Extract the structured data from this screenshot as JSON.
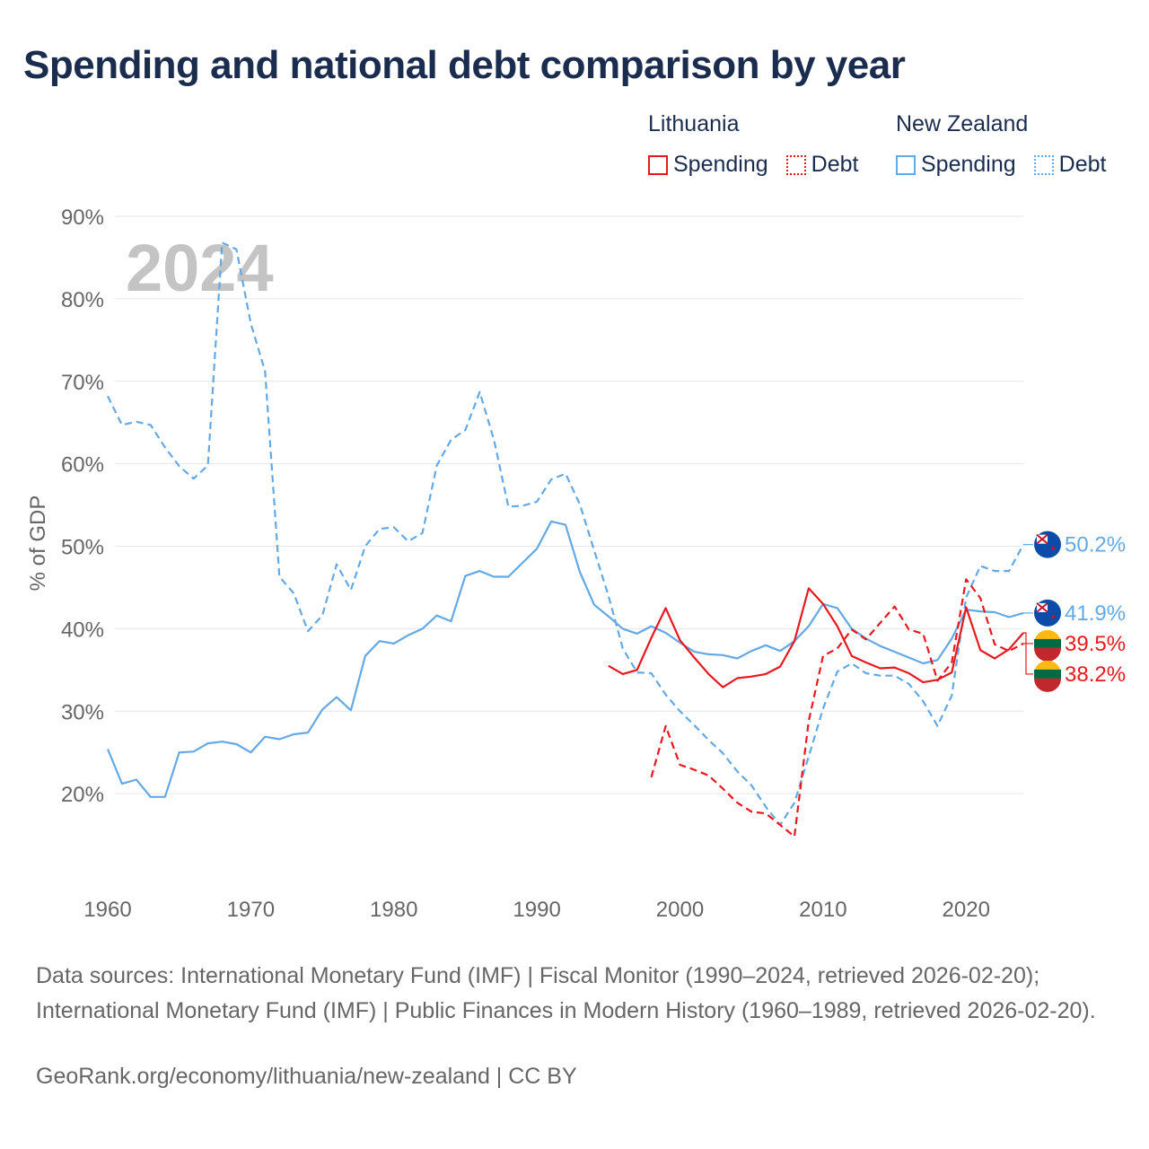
{
  "title": "Spending and national debt comparison by year",
  "legend": {
    "lithuania": {
      "country": "Lithuania",
      "spending": "Spending",
      "debt": "Debt"
    },
    "new_zealand": {
      "country": "New Zealand",
      "spending": "Spending",
      "debt": "Debt"
    }
  },
  "colors": {
    "lithuania": "#e8191e",
    "new_zealand": "#63a9e6",
    "year_watermark": "#c4c4c4",
    "grid": "#e6e6e6",
    "axis_text": "#666666"
  },
  "footer": {
    "sources": "Data sources: International Monetary Fund (IMF) | Fiscal Monitor (1990–2024, retrieved 2026-02-20); International Monetary Fund (IMF) | Public Finances in Modern History (1960–1989, retrieved 2026-02-20).",
    "credit": "GeoRank.org/economy/lithuania/new-zealand | CC BY"
  },
  "chart_data": {
    "type": "line",
    "year_label": "2024",
    "ylabel": "% of GDP",
    "xlim": [
      1960,
      2024
    ],
    "ylim": [
      10,
      90
    ],
    "x_ticks": [
      "1960",
      "1970",
      "1980",
      "1990",
      "2000",
      "2010",
      "2020"
    ],
    "y_ticks": [
      {
        "value": 20,
        "label": "20%"
      },
      {
        "value": 30,
        "label": "30%"
      },
      {
        "value": 40,
        "label": "40%"
      },
      {
        "value": 50,
        "label": "50%"
      },
      {
        "value": 60,
        "label": "60%"
      },
      {
        "value": 70,
        "label": "70%"
      },
      {
        "value": 80,
        "label": "80%"
      },
      {
        "value": 90,
        "label": "90%"
      }
    ],
    "series": [
      {
        "name": "New Zealand Debt",
        "country": "new_zealand",
        "kind": "debt",
        "end_label": "50.2%",
        "points": [
          [
            1960,
            68.2
          ],
          [
            1961,
            64.7
          ],
          [
            1962,
            65.1
          ],
          [
            1963,
            64.7
          ],
          [
            1964,
            62.0
          ],
          [
            1965,
            59.7
          ],
          [
            1966,
            58.2
          ],
          [
            1967,
            59.8
          ],
          [
            1968,
            86.8
          ],
          [
            1969,
            86.0
          ],
          [
            1970,
            77.0
          ],
          [
            1971,
            71.2
          ],
          [
            1972,
            46.3
          ],
          [
            1973,
            44.3
          ],
          [
            1974,
            39.7
          ],
          [
            1975,
            41.6
          ],
          [
            1976,
            47.8
          ],
          [
            1977,
            44.7
          ],
          [
            1978,
            50.0
          ],
          [
            1979,
            52.1
          ],
          [
            1980,
            52.3
          ],
          [
            1981,
            50.6
          ],
          [
            1982,
            51.6
          ],
          [
            1983,
            59.8
          ],
          [
            1984,
            62.9
          ],
          [
            1985,
            64.1
          ],
          [
            1986,
            68.7
          ],
          [
            1987,
            62.9
          ],
          [
            1988,
            54.8
          ],
          [
            1989,
            54.9
          ],
          [
            1990,
            55.4
          ],
          [
            1991,
            58.1
          ],
          [
            1992,
            58.8
          ],
          [
            1993,
            55.1
          ],
          [
            1994,
            49.5
          ],
          [
            1995,
            44.0
          ],
          [
            1996,
            37.6
          ],
          [
            1997,
            34.7
          ],
          [
            1998,
            34.6
          ],
          [
            1999,
            32.0
          ],
          [
            2000,
            30.0
          ],
          [
            2001,
            28.3
          ],
          [
            2002,
            26.5
          ],
          [
            2003,
            24.9
          ],
          [
            2004,
            22.7
          ],
          [
            2005,
            21.0
          ],
          [
            2006,
            18.4
          ],
          [
            2007,
            16.2
          ],
          [
            2008,
            18.9
          ],
          [
            2009,
            24.5
          ],
          [
            2010,
            30.3
          ],
          [
            2011,
            34.8
          ],
          [
            2012,
            35.8
          ],
          [
            2013,
            34.6
          ],
          [
            2014,
            34.3
          ],
          [
            2015,
            34.3
          ],
          [
            2016,
            33.3
          ],
          [
            2017,
            31.2
          ],
          [
            2018,
            28.2
          ],
          [
            2019,
            31.9
          ],
          [
            2020,
            43.8
          ],
          [
            2021,
            47.6
          ],
          [
            2022,
            47.0
          ],
          [
            2023,
            47.0
          ],
          [
            2024,
            50.2
          ]
        ]
      },
      {
        "name": "New Zealand Spending",
        "country": "new_zealand",
        "kind": "spending",
        "end_label": "41.9%",
        "points": [
          [
            1960,
            25.4
          ],
          [
            1961,
            21.2
          ],
          [
            1962,
            21.7
          ],
          [
            1963,
            19.6
          ],
          [
            1964,
            19.6
          ],
          [
            1965,
            25.0
          ],
          [
            1966,
            25.1
          ],
          [
            1967,
            26.1
          ],
          [
            1968,
            26.3
          ],
          [
            1969,
            26.0
          ],
          [
            1970,
            25.0
          ],
          [
            1971,
            26.9
          ],
          [
            1972,
            26.6
          ],
          [
            1973,
            27.2
          ],
          [
            1974,
            27.4
          ],
          [
            1975,
            30.2
          ],
          [
            1976,
            31.7
          ],
          [
            1977,
            30.1
          ],
          [
            1978,
            36.7
          ],
          [
            1979,
            38.5
          ],
          [
            1980,
            38.2
          ],
          [
            1981,
            39.2
          ],
          [
            1982,
            40.0
          ],
          [
            1983,
            41.6
          ],
          [
            1984,
            40.9
          ],
          [
            1985,
            46.4
          ],
          [
            1986,
            47.0
          ],
          [
            1987,
            46.3
          ],
          [
            1988,
            46.3
          ],
          [
            1989,
            48.0
          ],
          [
            1990,
            49.7
          ],
          [
            1991,
            53.0
          ],
          [
            1992,
            52.6
          ],
          [
            1993,
            46.9
          ],
          [
            1994,
            42.9
          ],
          [
            1995,
            41.5
          ],
          [
            1996,
            40.0
          ],
          [
            1997,
            39.4
          ],
          [
            1998,
            40.3
          ],
          [
            1999,
            39.5
          ],
          [
            2000,
            38.3
          ],
          [
            2001,
            37.2
          ],
          [
            2002,
            36.9
          ],
          [
            2003,
            36.8
          ],
          [
            2004,
            36.4
          ],
          [
            2005,
            37.3
          ],
          [
            2006,
            38.0
          ],
          [
            2007,
            37.3
          ],
          [
            2008,
            38.5
          ],
          [
            2009,
            40.3
          ],
          [
            2010,
            43.0
          ],
          [
            2011,
            42.5
          ],
          [
            2012,
            40.0
          ],
          [
            2013,
            38.8
          ],
          [
            2014,
            37.9
          ],
          [
            2015,
            37.2
          ],
          [
            2016,
            36.5
          ],
          [
            2017,
            35.8
          ],
          [
            2018,
            36.2
          ],
          [
            2019,
            38.8
          ],
          [
            2020,
            42.3
          ],
          [
            2021,
            42.1
          ],
          [
            2022,
            42.0
          ],
          [
            2023,
            41.4
          ],
          [
            2024,
            41.9
          ]
        ]
      },
      {
        "name": "Lithuania Debt",
        "country": "lithuania",
        "kind": "debt",
        "end_label": "38.2%",
        "points": [
          [
            1998,
            22.0
          ],
          [
            1999,
            28.2
          ],
          [
            2000,
            23.5
          ],
          [
            2001,
            22.9
          ],
          [
            2002,
            22.2
          ],
          [
            2003,
            20.6
          ],
          [
            2004,
            18.9
          ],
          [
            2005,
            17.8
          ],
          [
            2006,
            17.6
          ],
          [
            2007,
            16.2
          ],
          [
            2008,
            14.8
          ],
          [
            2009,
            28.8
          ],
          [
            2010,
            36.7
          ],
          [
            2011,
            37.6
          ],
          [
            2012,
            39.9
          ],
          [
            2013,
            38.7
          ],
          [
            2014,
            40.7
          ],
          [
            2015,
            42.7
          ],
          [
            2016,
            39.9
          ],
          [
            2017,
            39.4
          ],
          [
            2018,
            33.7
          ],
          [
            2019,
            35.9
          ],
          [
            2020,
            46.0
          ],
          [
            2021,
            43.7
          ],
          [
            2022,
            38.1
          ],
          [
            2023,
            37.3
          ],
          [
            2024,
            38.2
          ]
        ]
      },
      {
        "name": "Lithuania Spending",
        "country": "lithuania",
        "kind": "spending",
        "end_label": "39.5%",
        "points": [
          [
            1995,
            35.5
          ],
          [
            1996,
            34.5
          ],
          [
            1997,
            35.0
          ],
          [
            1998,
            38.9
          ],
          [
            1999,
            42.5
          ],
          [
            2000,
            38.6
          ],
          [
            2001,
            36.5
          ],
          [
            2002,
            34.5
          ],
          [
            2003,
            32.9
          ],
          [
            2004,
            34.0
          ],
          [
            2005,
            34.2
          ],
          [
            2006,
            34.5
          ],
          [
            2007,
            35.4
          ],
          [
            2008,
            38.5
          ],
          [
            2009,
            44.9
          ],
          [
            2010,
            43.0
          ],
          [
            2011,
            40.3
          ],
          [
            2012,
            36.7
          ],
          [
            2013,
            35.9
          ],
          [
            2014,
            35.2
          ],
          [
            2015,
            35.3
          ],
          [
            2016,
            34.6
          ],
          [
            2017,
            33.5
          ],
          [
            2018,
            33.8
          ],
          [
            2019,
            34.7
          ],
          [
            2020,
            42.6
          ],
          [
            2021,
            37.4
          ],
          [
            2022,
            36.4
          ],
          [
            2023,
            37.5
          ],
          [
            2024,
            39.5
          ]
        ]
      }
    ]
  }
}
